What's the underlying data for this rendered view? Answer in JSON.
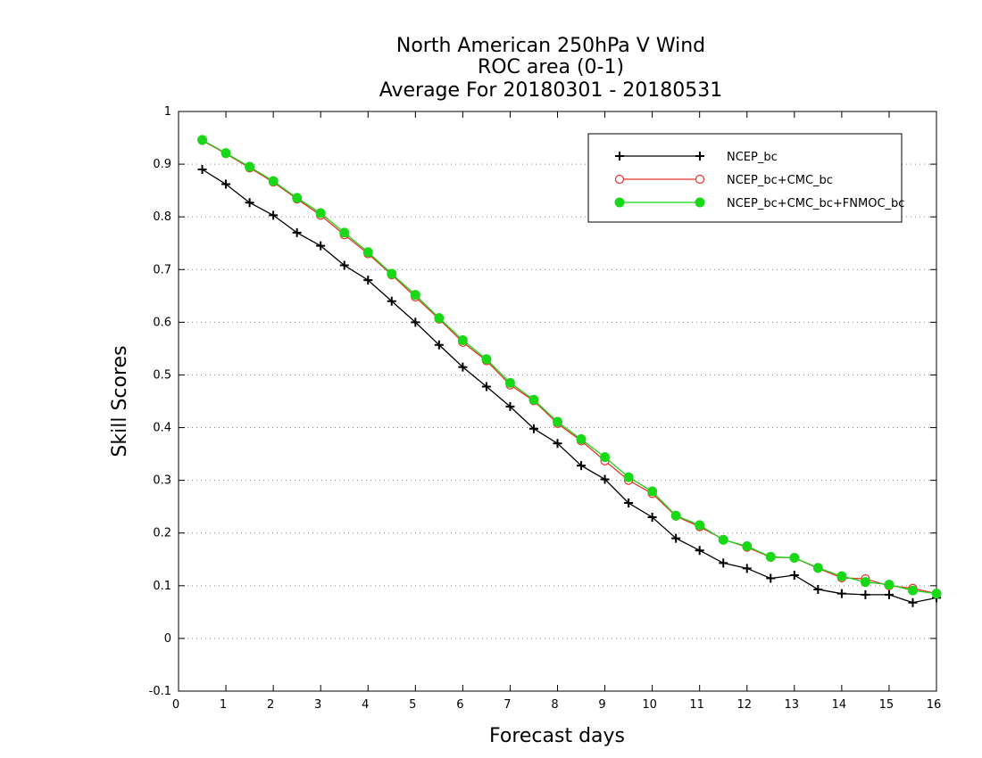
{
  "chart_data": {
    "type": "line",
    "title_lines": [
      "North American 250hPa V Wind",
      "ROC area (0-1)",
      "Average For 20180301 - 20180531"
    ],
    "xlabel": "Forecast days",
    "ylabel": "Skill Scores",
    "xlim": [
      0,
      16
    ],
    "ylim": [
      -0.1,
      1
    ],
    "xticks": [
      0,
      1,
      2,
      3,
      4,
      5,
      6,
      7,
      8,
      9,
      10,
      11,
      12,
      13,
      14,
      15,
      16
    ],
    "yticks": [
      -0.1,
      0,
      0.1,
      0.2,
      0.3,
      0.4,
      0.5,
      0.6,
      0.7,
      0.8,
      0.9,
      1
    ],
    "ytick_labels": [
      "-0.1",
      "0",
      "0.1",
      "0.2",
      "0.3",
      "0.4",
      "0.5",
      "0.6",
      "0.7",
      "0.8",
      "0.9",
      "1"
    ],
    "grid": "horizontal dotted",
    "legend_position": "top-right",
    "x": [
      0.5,
      1,
      1.5,
      2,
      2.5,
      3,
      3.5,
      4,
      4.5,
      5,
      5.5,
      6,
      6.5,
      7,
      7.5,
      8,
      8.5,
      9,
      9.5,
      10,
      10.5,
      11,
      11.5,
      12,
      12.5,
      13,
      13.5,
      14,
      14.5,
      15,
      15.5,
      16
    ],
    "series": [
      {
        "name": "NCEP_bc",
        "color": "#000000",
        "marker": "plus",
        "values": [
          0.89,
          0.862,
          0.827,
          0.803,
          0.77,
          0.745,
          0.708,
          0.68,
          0.64,
          0.6,
          0.557,
          0.515,
          0.478,
          0.44,
          0.398,
          0.37,
          0.328,
          0.302,
          0.257,
          0.23,
          0.19,
          0.167,
          0.143,
          0.133,
          0.114,
          0.12,
          0.093,
          0.085,
          0.083,
          0.083,
          0.068,
          0.077
        ]
      },
      {
        "name": "NCEP_bc+CMC_bc",
        "color": "#e8312a",
        "marker": "open-circle",
        "values": [
          0.945,
          0.92,
          0.893,
          0.866,
          0.834,
          0.803,
          0.766,
          0.73,
          0.69,
          0.648,
          0.606,
          0.562,
          0.527,
          0.481,
          0.451,
          0.408,
          0.375,
          0.337,
          0.3,
          0.275,
          0.232,
          0.212,
          0.188,
          0.173,
          0.154,
          0.153,
          0.133,
          0.115,
          0.113,
          0.1,
          0.095,
          0.085
        ]
      },
      {
        "name": "NCEP_bc+CMC_bc+FNMOC_bc",
        "color": "#18d818",
        "marker": "filled-circle",
        "values": [
          0.946,
          0.921,
          0.895,
          0.868,
          0.836,
          0.807,
          0.77,
          0.733,
          0.692,
          0.652,
          0.608,
          0.566,
          0.53,
          0.485,
          0.453,
          0.411,
          0.378,
          0.344,
          0.306,
          0.279,
          0.233,
          0.215,
          0.187,
          0.175,
          0.155,
          0.153,
          0.134,
          0.118,
          0.107,
          0.102,
          0.091,
          0.085
        ]
      }
    ]
  }
}
